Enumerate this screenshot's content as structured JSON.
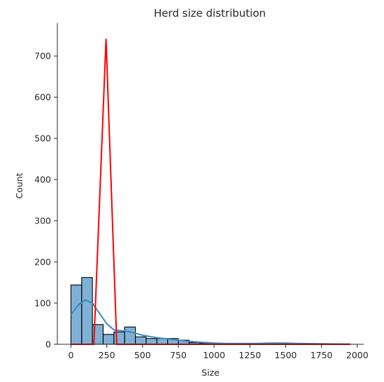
{
  "chart_data": {
    "type": "bar",
    "title": "Herd size distribution",
    "xlabel": "Size",
    "ylabel": "Count",
    "xlim": [
      -95,
      2045
    ],
    "ylim": [
      0,
      780
    ],
    "xticks": [
      0,
      250,
      500,
      750,
      1000,
      1250,
      1500,
      1750,
      2000
    ],
    "yticks": [
      0,
      100,
      200,
      300,
      400,
      500,
      600,
      700
    ],
    "bar_color": "#7fb0d5",
    "kde_color": "#3d87c2",
    "overlay_color": "#ff0000",
    "histogram": {
      "bin_edges": [
        0,
        75,
        150,
        225,
        300,
        375,
        450,
        525,
        600,
        675,
        750,
        825,
        900,
        975,
        1050,
        1125,
        1200,
        1275,
        1350,
        1425,
        1500,
        1575,
        1650,
        1725,
        1800,
        1875,
        1950
      ],
      "counts": [
        144,
        162,
        48,
        24,
        30,
        42,
        18,
        14,
        14,
        14,
        10,
        4,
        3,
        2,
        2,
        2,
        2,
        2,
        2,
        2,
        2,
        1,
        1,
        1,
        1,
        1
      ]
    },
    "kde": {
      "x": [
        0,
        50,
        100,
        150,
        200,
        250,
        300,
        350,
        400,
        450,
        500,
        600,
        700,
        800,
        900,
        1000,
        1100,
        1200,
        1300,
        1400,
        1500,
        1600,
        1700,
        1800,
        1900,
        1950
      ],
      "y": [
        72,
        95,
        108,
        100,
        75,
        50,
        35,
        33,
        31,
        27,
        22,
        16,
        12,
        8,
        5,
        3,
        2,
        2,
        2,
        3,
        3,
        2,
        1.5,
        1,
        0.5,
        0.3
      ]
    },
    "overlay_line": {
      "x": [
        0,
        160,
        245,
        320,
        1950
      ],
      "y": [
        0,
        0,
        742,
        0,
        0
      ]
    }
  }
}
